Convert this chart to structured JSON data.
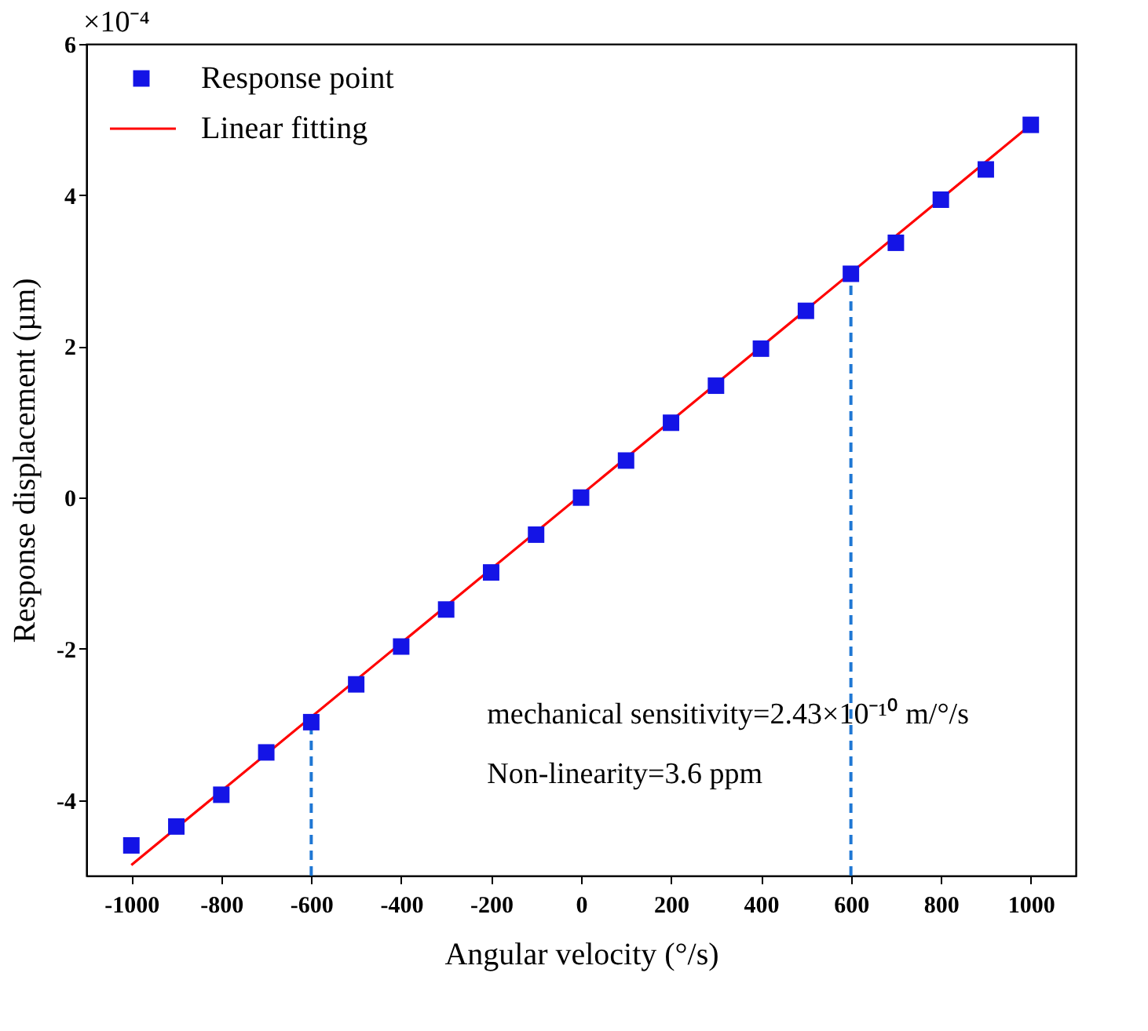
{
  "chart_data": {
    "type": "scatter",
    "xlabel": "Angular velocity (°/s)",
    "ylabel": "Response displacement (µm)",
    "xlim": [
      -1100,
      1100
    ],
    "ylim": [
      -5,
      6
    ],
    "xticks": [
      -1000,
      -800,
      -600,
      -400,
      -200,
      0,
      200,
      400,
      600,
      800,
      1000
    ],
    "yticks": [
      -4,
      -2,
      0,
      2,
      4,
      6
    ],
    "grid": false,
    "legend": "top left",
    "marker": "square",
    "series": [
      {
        "name": "Response point",
        "color": "#1414e6",
        "x": [
          -1000,
          -900,
          -800,
          -700,
          -600,
          -500,
          -400,
          -300,
          -200,
          -100,
          0,
          100,
          200,
          300,
          400,
          500,
          600,
          700,
          800,
          900,
          1000
        ],
        "values": [
          -4.6,
          -4.35,
          -3.93,
          -3.37,
          -2.97,
          -2.47,
          -1.97,
          -1.48,
          -0.99,
          -0.49,
          0,
          0.49,
          0.99,
          1.48,
          1.97,
          2.47,
          2.96,
          3.37,
          3.94,
          4.34,
          4.93
        ]
      },
      {
        "name": "Linear fitting",
        "type": "line",
        "marker": "none",
        "line_style": "solid",
        "color": "#ff0000",
        "x": [
          -1000,
          1000
        ],
        "values": [
          -4.86,
          4.93
        ]
      },
      {
        "type": "line",
        "marker": "none",
        "color": "#1f77d4",
        "line_style": "dashed",
        "x": [
          -600,
          -600
        ],
        "values": [
          -5,
          -2.97
        ]
      },
      {
        "type": "line",
        "marker": "none",
        "color": "#1f77d4",
        "line_style": "dashed",
        "x": [
          600,
          600
        ],
        "values": [
          -5,
          2.96
        ]
      }
    ],
    "annotations": [
      "×10⁻⁴",
      "mechanical sensitivity=2.43×10⁻¹⁰ m/°/s",
      "Non-linearity=3.6 ppm"
    ]
  }
}
